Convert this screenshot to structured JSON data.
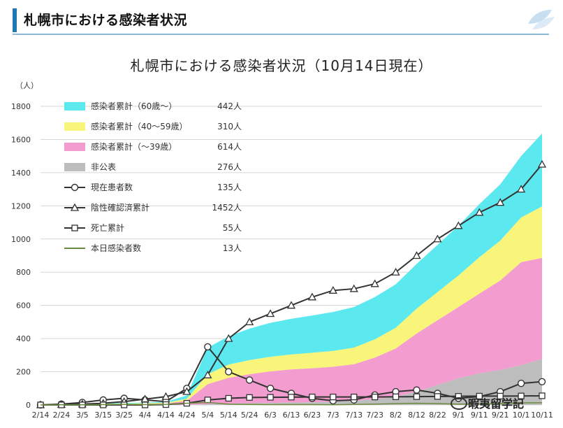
{
  "page_header": {
    "title": "札幌市における感染者状況"
  },
  "watermark": {
    "text": "暇夷留学記"
  },
  "chart_data": {
    "type": "area",
    "title": "札幌市における感染者状況（10月14日現在）",
    "y_unit": "（人）",
    "ylim": [
      0,
      1800
    ],
    "y_ticks": [
      0,
      200,
      400,
      600,
      800,
      1000,
      1200,
      1400,
      1600,
      1800
    ],
    "x_tick_labels": [
      "2/14",
      "2/24",
      "3/5",
      "3/15",
      "3/25",
      "4/4",
      "4/14",
      "4/24",
      "5/4",
      "5/14",
      "5/24",
      "6/3",
      "6/13",
      "6/23",
      "7/3",
      "7/13",
      "7/23",
      "8/2",
      "8/12",
      "8/22",
      "9/1",
      "9/11",
      "9/21",
      "10/1",
      "10/11"
    ],
    "colors": {
      "age60": "#5ce8ef",
      "age40_59": "#f8f57a",
      "under39": "#f39ccf",
      "undisclosed": "#bdbdbd",
      "line": "#333333",
      "daily": "#6a8a3f"
    },
    "legend": [
      {
        "label": "感染者累計（60歳～）",
        "count": "442人",
        "kind": "area",
        "color": "#5ce8ef"
      },
      {
        "label": "感染者累計（40～59歳）",
        "count": "310人",
        "kind": "area",
        "color": "#f8f57a"
      },
      {
        "label": "感染者累計（～39歳）",
        "count": "614人",
        "kind": "area",
        "color": "#f39ccf"
      },
      {
        "label": "非公表",
        "count": "276人",
        "kind": "area",
        "color": "#bdbdbd"
      },
      {
        "label": "現在患者数",
        "count": "135人",
        "kind": "circle-line"
      },
      {
        "label": "陰性確認済累計",
        "count": "1452人",
        "kind": "triangle-line"
      },
      {
        "label": "死亡累計",
        "count": "55人",
        "kind": "square-line"
      },
      {
        "label": "本日感染者数",
        "count": "13人",
        "kind": "plain-line"
      }
    ],
    "series": [
      {
        "name": "感染者累計（60歳～）",
        "type": "stacked-area",
        "values": [
          0,
          1,
          2,
          3,
          4,
          4,
          6,
          20,
          160,
          170,
          190,
          205,
          215,
          225,
          235,
          245,
          255,
          262,
          270,
          285,
          300,
          320,
          340,
          370,
          440
        ]
      },
      {
        "name": "感染者累計（40～59歳）",
        "type": "stacked-area",
        "values": [
          0,
          1,
          2,
          3,
          3,
          4,
          5,
          12,
          60,
          80,
          85,
          88,
          90,
          93,
          95,
          100,
          110,
          125,
          150,
          170,
          190,
          220,
          240,
          270,
          310
        ]
      },
      {
        "name": "感染者累計（～39歳）",
        "type": "stacked-area",
        "values": [
          0,
          2,
          3,
          4,
          5,
          6,
          8,
          25,
          120,
          155,
          175,
          190,
          200,
          205,
          210,
          220,
          250,
          290,
          350,
          390,
          430,
          480,
          540,
          620,
          610
        ]
      },
      {
        "name": "非公表",
        "type": "stacked-area",
        "values": [
          0,
          0,
          0,
          0,
          0,
          0,
          0,
          0,
          5,
          8,
          10,
          12,
          14,
          16,
          20,
          25,
          35,
          50,
          80,
          120,
          160,
          190,
          210,
          240,
          276
        ]
      },
      {
        "name": "現在患者数",
        "type": "line",
        "marker": "circle",
        "values": [
          0,
          5,
          15,
          30,
          40,
          30,
          20,
          100,
          350,
          200,
          150,
          100,
          70,
          40,
          25,
          30,
          60,
          80,
          90,
          70,
          40,
          50,
          80,
          130,
          140
        ]
      },
      {
        "name": "陰性確認済累計",
        "type": "line",
        "marker": "triangle",
        "values": [
          0,
          2,
          5,
          10,
          20,
          35,
          50,
          80,
          180,
          400,
          500,
          550,
          600,
          650,
          690,
          700,
          730,
          800,
          900,
          1000,
          1080,
          1160,
          1220,
          1300,
          1450
        ]
      },
      {
        "name": "死亡累計",
        "type": "line",
        "marker": "square",
        "values": [
          0,
          0,
          0,
          0,
          0,
          0,
          2,
          10,
          30,
          40,
          45,
          46,
          47,
          48,
          48,
          48,
          48,
          49,
          50,
          51,
          52,
          53,
          53,
          54,
          55
        ]
      },
      {
        "name": "本日感染者数",
        "type": "line",
        "marker": "none",
        "values": [
          0,
          1,
          1,
          2,
          3,
          2,
          3,
          10,
          15,
          5,
          3,
          2,
          2,
          2,
          1,
          3,
          5,
          8,
          10,
          8,
          5,
          6,
          8,
          12,
          13
        ]
      }
    ]
  }
}
